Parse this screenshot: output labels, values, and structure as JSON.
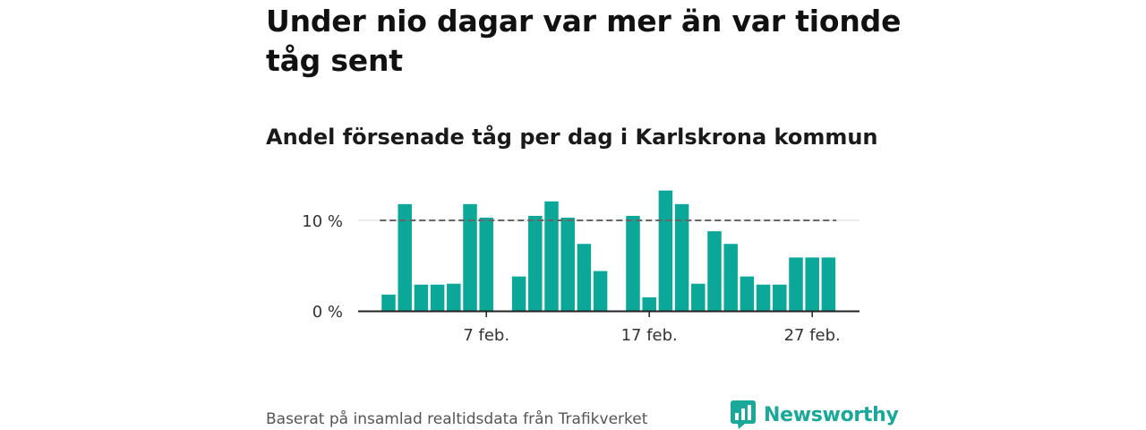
{
  "title": "Under nio dagar var mer än var tionde tåg sent",
  "subtitle": "Andel försenade tåg per dag i Karlskrona kommun",
  "source": "Baserat på insamlad realtidsdata från Trafikverket",
  "brand": {
    "name": "Newsworthy",
    "logo_icon": "bar-chart-speech-bubble-icon",
    "color": "#19a89a"
  },
  "chart_data": {
    "type": "bar",
    "x": [
      "1 feb.",
      "2 feb.",
      "3 feb.",
      "4 feb.",
      "5 feb.",
      "6 feb.",
      "7 feb.",
      "8 feb.",
      "9 feb.",
      "10 feb.",
      "11 feb.",
      "12 feb.",
      "13 feb.",
      "14 feb.",
      "15 feb.",
      "16 feb.",
      "17 feb.",
      "18 feb.",
      "19 feb.",
      "20 feb.",
      "21 feb.",
      "22 feb.",
      "23 feb.",
      "24 feb.",
      "25 feb.",
      "26 feb.",
      "27 feb.",
      "28 feb."
    ],
    "values": [
      1.8,
      11.8,
      2.9,
      2.9,
      3.0,
      11.8,
      10.3,
      0,
      3.8,
      10.5,
      12.1,
      10.3,
      7.4,
      4.4,
      0,
      10.5,
      1.5,
      13.3,
      11.8,
      3.0,
      8.8,
      7.4,
      3.8,
      2.9,
      2.9,
      5.9,
      5.9,
      5.9
    ],
    "ylim": [
      0,
      14
    ],
    "yticks": [
      0,
      10
    ],
    "ytick_labels": [
      "0 %",
      "10 %"
    ],
    "xticks": [
      "7 feb.",
      "17 feb.",
      "27 feb."
    ],
    "reference_line": 10,
    "bar_color": "#0ba89a",
    "reference_line_color": "#666666",
    "grid": "horizontal",
    "legend": "none"
  }
}
